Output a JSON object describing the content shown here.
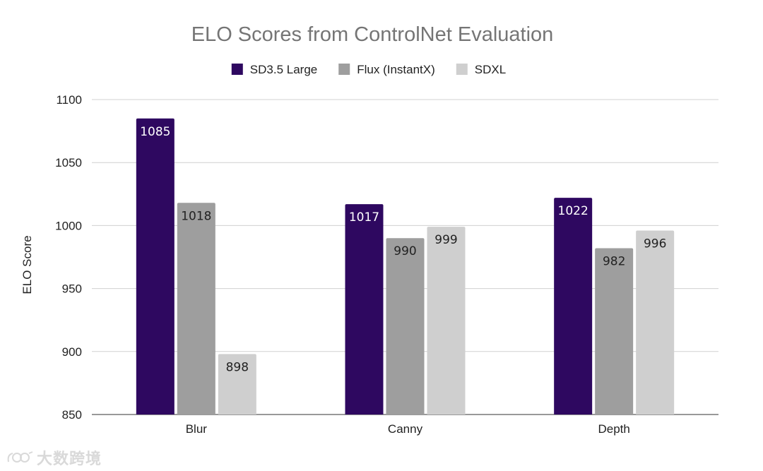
{
  "chart_data": {
    "type": "bar",
    "title": "ELO Scores from ControlNet Evaluation",
    "xlabel": "",
    "ylabel": "ELO Score",
    "ylim": [
      850,
      1100
    ],
    "yticks": [
      850,
      900,
      950,
      1000,
      1050,
      1100
    ],
    "grid": true,
    "legend_position": "top-center",
    "categories": [
      "Blur",
      "Canny",
      "Depth"
    ],
    "series": [
      {
        "name": "SD3.5 Large",
        "color": "#2e0860",
        "label_color": "#ffffff",
        "values": [
          1085,
          1017,
          1022
        ]
      },
      {
        "name": "Flux (InstantX)",
        "color": "#9e9e9e",
        "label_color": "#222222",
        "values": [
          1018,
          990,
          982
        ]
      },
      {
        "name": "SDXL",
        "color": "#cfcfcf",
        "label_color": "#222222",
        "values": [
          898,
          999,
          996
        ]
      }
    ]
  },
  "watermark": {
    "text": "大数跨境"
  }
}
